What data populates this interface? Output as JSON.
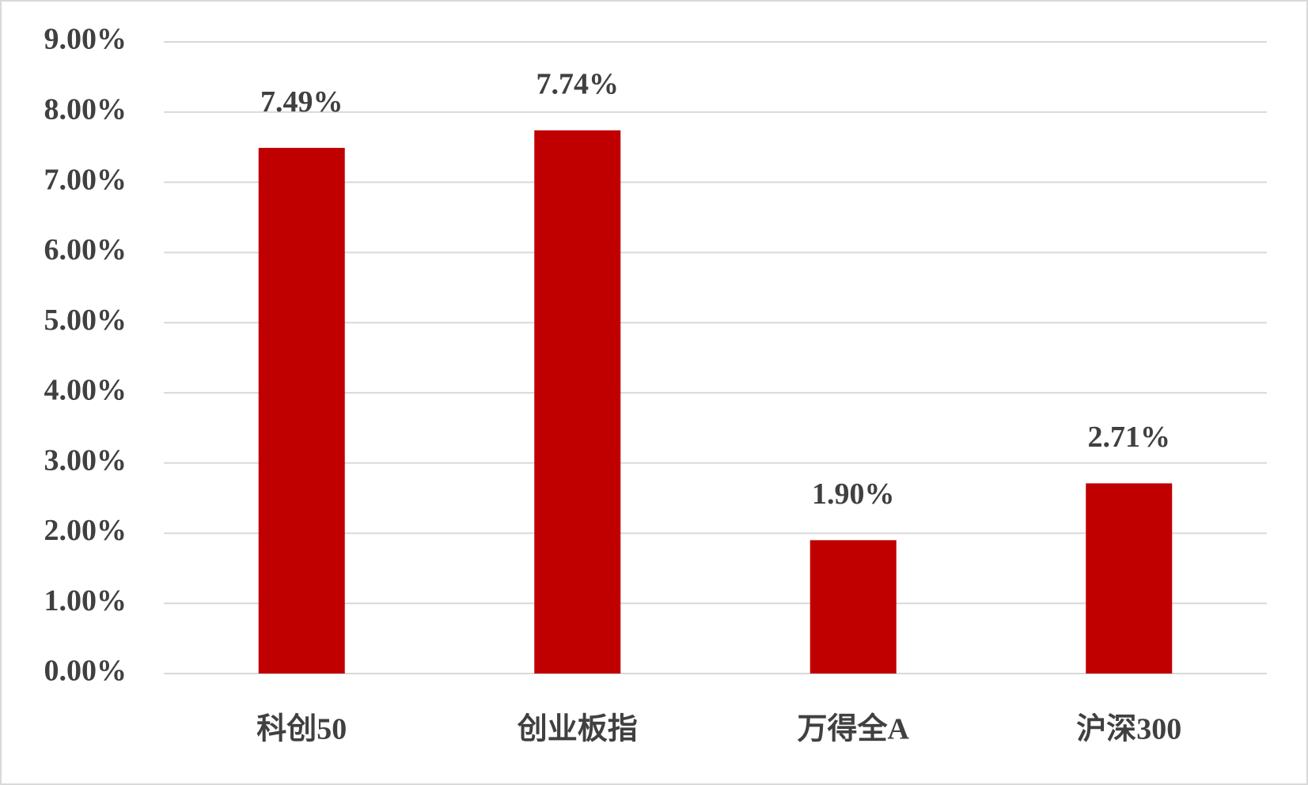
{
  "chart_data": {
    "type": "bar",
    "categories": [
      "科创50",
      "创业板指",
      "万得全A",
      "沪深300"
    ],
    "values": [
      7.49,
      7.74,
      1.9,
      2.71
    ],
    "value_labels": [
      "7.49%",
      "7.74%",
      "1.90%",
      "2.71%"
    ],
    "color": "#c00000",
    "ylim": [
      0,
      9
    ],
    "yticks": [
      {
        "value": 0,
        "label": "0.00%"
      },
      {
        "value": 1,
        "label": "1.00%"
      },
      {
        "value": 2,
        "label": "2.00%"
      },
      {
        "value": 3,
        "label": "3.00%"
      },
      {
        "value": 4,
        "label": "4.00%"
      },
      {
        "value": 5,
        "label": "5.00%"
      },
      {
        "value": 6,
        "label": "6.00%"
      },
      {
        "value": 7,
        "label": "7.00%"
      },
      {
        "value": 8,
        "label": "8.00%"
      },
      {
        "value": 9,
        "label": "9.00%"
      }
    ],
    "grid": true
  }
}
